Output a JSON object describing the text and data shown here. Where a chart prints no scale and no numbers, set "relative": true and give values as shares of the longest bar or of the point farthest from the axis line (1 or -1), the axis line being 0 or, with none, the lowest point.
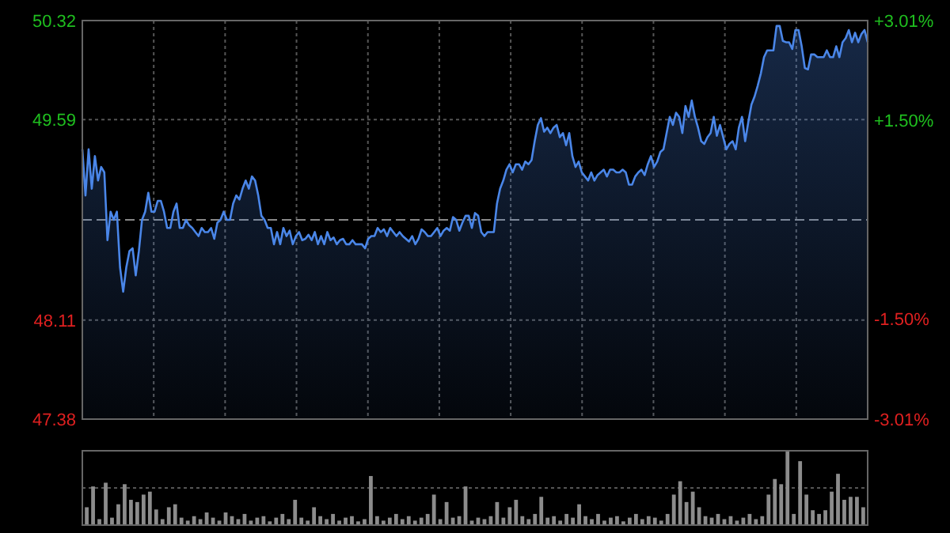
{
  "chart_data": [
    {
      "type": "area",
      "categories": [
        null,
        null,
        null,
        null,
        null,
        null,
        null,
        null,
        null,
        null,
        null,
        null,
        null,
        null,
        null,
        null,
        null,
        null,
        null,
        null,
        null,
        null,
        null,
        null,
        null,
        null,
        null,
        null,
        null,
        null,
        null,
        null,
        null,
        null,
        null,
        null,
        null,
        null,
        null,
        null,
        null,
        null,
        null,
        null,
        null,
        null,
        null,
        null,
        null,
        null,
        null,
        null,
        null,
        null,
        null,
        null,
        null,
        null,
        null,
        null,
        null,
        null,
        null,
        null,
        null,
        null,
        null,
        null,
        null,
        null,
        null,
        null,
        null,
        null,
        null,
        null,
        null,
        null,
        null,
        null,
        null,
        null,
        null,
        null,
        null,
        null,
        null,
        null,
        null,
        null,
        null,
        null,
        null,
        null,
        null,
        null,
        null,
        null,
        null,
        null,
        null,
        null,
        null,
        null,
        null,
        null,
        null,
        null,
        null,
        null,
        null,
        null,
        null,
        null,
        null,
        null,
        null,
        null,
        null,
        null,
        null,
        null,
        null,
        null,
        null,
        null,
        null,
        null,
        null,
        null,
        null,
        null,
        null,
        null,
        null,
        null,
        null,
        null,
        null,
        null,
        null,
        null,
        null,
        null,
        null,
        null,
        null,
        null,
        null,
        null,
        null,
        null,
        null,
        null,
        null,
        null,
        null,
        null,
        null,
        null,
        null,
        null,
        null,
        null,
        null,
        null,
        null,
        null,
        null,
        null,
        null,
        null,
        null,
        null,
        null,
        null,
        null,
        null,
        null,
        null,
        null,
        null,
        null,
        null,
        null,
        null,
        null,
        null,
        null,
        null,
        null,
        null,
        null,
        null,
        null,
        null,
        null,
        null,
        null,
        null,
        null,
        null,
        null,
        null,
        null,
        null,
        null,
        null,
        null,
        null,
        null,
        null,
        null,
        null,
        null,
        null,
        null,
        null,
        null,
        null,
        null,
        null,
        null,
        null,
        null,
        null,
        null,
        null,
        null,
        null,
        null,
        null,
        null,
        null,
        null,
        null,
        null,
        null,
        null,
        null,
        null,
        null,
        null,
        null,
        null,
        null,
        null,
        null,
        null,
        null,
        null
      ],
      "series": [
        {
          "color": "#4a86e8",
          "values": [
            49.37,
            49.03,
            49.37,
            49.08,
            49.32,
            49.14,
            49.24,
            49.2,
            48.7,
            48.91,
            48.85,
            48.91,
            48.5,
            48.32,
            48.5,
            48.62,
            48.64,
            48.44,
            48.62,
            48.85,
            48.91,
            49.05,
            48.91,
            48.91,
            48.99,
            48.99,
            48.91,
            48.79,
            48.79,
            48.91,
            48.97,
            48.79,
            48.79,
            48.85,
            48.81,
            48.79,
            48.76,
            48.73,
            48.79,
            48.76,
            48.76,
            48.79,
            48.71,
            48.83,
            48.85,
            48.91,
            48.85,
            48.85,
            48.97,
            49.03,
            49.0,
            49.08,
            49.14,
            49.08,
            49.17,
            49.14,
            49.03,
            48.88,
            48.85,
            48.79,
            48.79,
            48.67,
            48.76,
            48.67,
            48.79,
            48.73,
            48.77,
            48.67,
            48.73,
            48.76,
            48.7,
            48.71,
            48.74,
            48.7,
            48.76,
            48.67,
            48.73,
            48.67,
            48.76,
            48.7,
            48.72,
            48.67,
            48.7,
            48.71,
            48.67,
            48.67,
            48.7,
            48.67,
            48.67,
            48.67,
            48.64,
            48.71,
            48.73,
            48.73,
            48.79,
            48.76,
            48.78,
            48.73,
            48.79,
            48.76,
            48.73,
            48.76,
            48.73,
            48.71,
            48.69,
            48.73,
            48.67,
            48.71,
            48.78,
            48.76,
            48.73,
            48.73,
            48.76,
            48.79,
            48.73,
            48.77,
            48.79,
            48.77,
            48.87,
            48.85,
            48.77,
            48.83,
            48.88,
            48.88,
            48.79,
            48.9,
            48.88,
            48.76,
            48.73,
            48.76,
            48.76,
            48.76,
            48.97,
            49.08,
            49.14,
            49.22,
            49.26,
            49.2,
            49.26,
            49.26,
            49.22,
            49.28,
            49.26,
            49.29,
            49.43,
            49.55,
            49.6,
            49.5,
            49.53,
            49.49,
            49.53,
            49.55,
            49.46,
            49.49,
            49.4,
            49.49,
            49.32,
            49.24,
            49.28,
            49.2,
            49.17,
            49.14,
            49.2,
            49.14,
            49.18,
            49.2,
            49.22,
            49.17,
            49.22,
            49.22,
            49.2,
            49.2,
            49.22,
            49.2,
            49.11,
            49.11,
            49.17,
            49.2,
            49.22,
            49.18,
            49.26,
            49.32,
            49.24,
            49.28,
            49.35,
            49.37,
            49.49,
            49.61,
            49.55,
            49.64,
            49.61,
            49.49,
            49.69,
            49.61,
            49.73,
            49.61,
            49.53,
            49.43,
            49.41,
            49.46,
            49.49,
            49.61,
            49.47,
            49.55,
            49.46,
            49.37,
            49.41,
            49.43,
            49.37,
            49.53,
            49.61,
            49.43,
            49.57,
            49.7,
            49.76,
            49.84,
            49.93,
            50.05,
            50.1,
            50.1,
            50.1,
            50.28,
            50.28,
            50.17,
            50.16,
            50.16,
            50.11,
            50.25,
            50.25,
            50.13,
            49.97,
            49.96,
            50.07,
            50.07,
            50.05,
            50.05,
            50.05,
            50.1,
            50.05,
            50.05,
            50.13,
            50.05,
            50.16,
            50.19,
            50.25,
            50.16,
            50.23,
            50.16,
            50.22,
            50.25,
            50.16
          ]
        }
      ],
      "ylim": [
        47.38,
        50.32
      ],
      "yticks": [
        47.38,
        48.11,
        49.59,
        50.32
      ],
      "y2lim": [
        -3.01,
        3.01
      ],
      "y2ticks": [
        {
          "value": 3.01,
          "label": "+3.01%"
        },
        {
          "value": 1.5,
          "label": "+1.50%"
        },
        {
          "value": -1.5,
          "label": "-1.50%"
        },
        {
          "value": -3.01,
          "label": "-3.01%"
        }
      ],
      "ref_lines": [
        {
          "axis": "y",
          "value": 48.85,
          "line_style": "dashed"
        }
      ],
      "grid": true
    },
    {
      "type": "bar",
      "relative": true,
      "categories": [
        null,
        null,
        null,
        null,
        null,
        null,
        null,
        null,
        null,
        null,
        null,
        null,
        null,
        null,
        null,
        null,
        null,
        null,
        null,
        null,
        null,
        null,
        null,
        null,
        null,
        null,
        null,
        null,
        null,
        null,
        null,
        null,
        null,
        null,
        null,
        null,
        null,
        null,
        null,
        null,
        null,
        null,
        null,
        null,
        null,
        null,
        null,
        null,
        null,
        null,
        null,
        null,
        null,
        null,
        null,
        null,
        null,
        null,
        null,
        null,
        null,
        null,
        null,
        null,
        null,
        null,
        null,
        null,
        null,
        null,
        null,
        null,
        null,
        null,
        null,
        null,
        null,
        null,
        null,
        null,
        null,
        null,
        null,
        null,
        null,
        null,
        null,
        null,
        null,
        null,
        null,
        null,
        null,
        null,
        null,
        null,
        null,
        null,
        null,
        null,
        null,
        null,
        null,
        null,
        null,
        null,
        null,
        null,
        null,
        null,
        null,
        null,
        null,
        null,
        null,
        null,
        null,
        null,
        null,
        null,
        null,
        null,
        null,
        null
      ],
      "color": "#8c8c8c",
      "values": [
        0.24,
        0.52,
        0.08,
        0.57,
        0.1,
        0.28,
        0.55,
        0.34,
        0.31,
        0.41,
        0.45,
        0.21,
        0.08,
        0.24,
        0.28,
        0.1,
        0.06,
        0.12,
        0.08,
        0.17,
        0.1,
        0.06,
        0.17,
        0.12,
        0.08,
        0.15,
        0.06,
        0.1,
        0.12,
        0.05,
        0.1,
        0.15,
        0.08,
        0.34,
        0.1,
        0.06,
        0.24,
        0.12,
        0.08,
        0.15,
        0.06,
        0.1,
        0.12,
        0.05,
        0.08,
        0.66,
        0.12,
        0.06,
        0.1,
        0.15,
        0.08,
        0.12,
        0.06,
        0.1,
        0.15,
        0.41,
        0.08,
        0.31,
        0.1,
        0.12,
        0.52,
        0.06,
        0.1,
        0.08,
        0.12,
        0.31,
        0.1,
        0.24,
        0.34,
        0.12,
        0.08,
        0.15,
        0.38,
        0.1,
        0.12,
        0.06,
        0.15,
        0.1,
        0.28,
        0.12,
        0.08,
        0.15,
        0.06,
        0.1,
        0.12,
        0.05,
        0.1,
        0.15,
        0.08,
        0.12,
        0.1,
        0.06,
        0.15,
        0.41,
        0.59,
        0.31,
        0.45,
        0.24,
        0.12,
        0.1,
        0.15,
        0.08,
        0.12,
        0.06,
        0.1,
        0.15,
        0.08,
        0.12,
        0.41,
        0.62,
        0.55,
        1,
        0.15,
        0.86,
        0.41,
        0.2,
        0.15,
        0.2,
        0.45,
        0.69,
        0.34,
        0.38,
        0.38,
        0.24
      ],
      "ref_lines": [
        {
          "axis": "y",
          "value": 0.5,
          "line_style": "dotted",
          "color": "#555555"
        }
      ]
    }
  ]
}
